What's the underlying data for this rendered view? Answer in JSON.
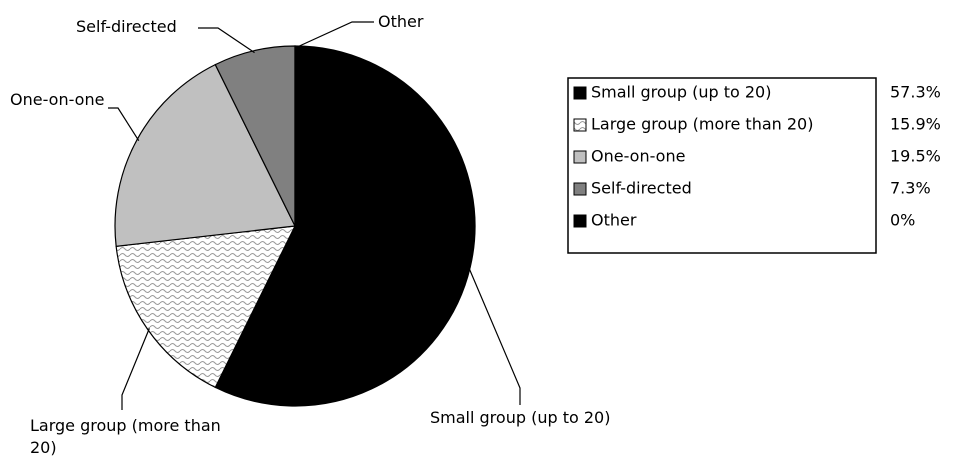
{
  "chart_data": {
    "type": "pie",
    "categories": [
      "Small group (up to 20)",
      "Large group (more than 20)",
      "One-on-one",
      "Self-directed",
      "Other"
    ],
    "values": [
      57.3,
      15.9,
      19.5,
      7.3,
      0
    ],
    "value_labels": [
      "57.3%",
      "15.9%",
      "19.5%",
      "7.3%",
      "0%"
    ],
    "colors": [
      "#000000",
      "#ffffff",
      "#c0c0c0",
      "#808080",
      "#000000"
    ],
    "patterns": [
      null,
      "wave",
      null,
      null,
      null
    ],
    "legend": "right"
  }
}
